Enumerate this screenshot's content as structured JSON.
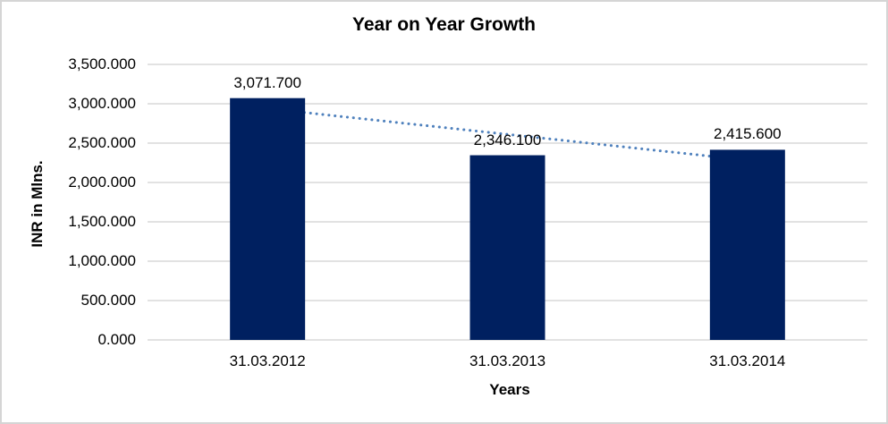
{
  "chart_data": {
    "type": "bar",
    "title": "Year on Year Growth",
    "xlabel": "Years",
    "ylabel": "INR in Mlns.",
    "categories": [
      "31.03.2012",
      "31.03.2013",
      "31.03.2014"
    ],
    "values": [
      3071.7,
      2346.1,
      2415.6
    ],
    "data_labels": [
      "3,071.700",
      "2,346.100",
      "2,415.600"
    ],
    "ylim": [
      0,
      3500
    ],
    "ytick_values": [
      0,
      500,
      1000,
      1500,
      2000,
      2500,
      3000,
      3500
    ],
    "ytick_labels": [
      "0.000",
      "500.000",
      "1,000.000",
      "1,500.000",
      "2,000.000",
      "2,500.000",
      "3,000.000",
      "3,500.000"
    ],
    "grid": true,
    "legend": "none",
    "bar_color": "#002060",
    "gridline_color": "#d9d9d9",
    "trendline": {
      "type": "linear",
      "style": "dotted",
      "color": "#4f81bd",
      "start_value": 2939.2,
      "end_value": 2283.1
    }
  }
}
